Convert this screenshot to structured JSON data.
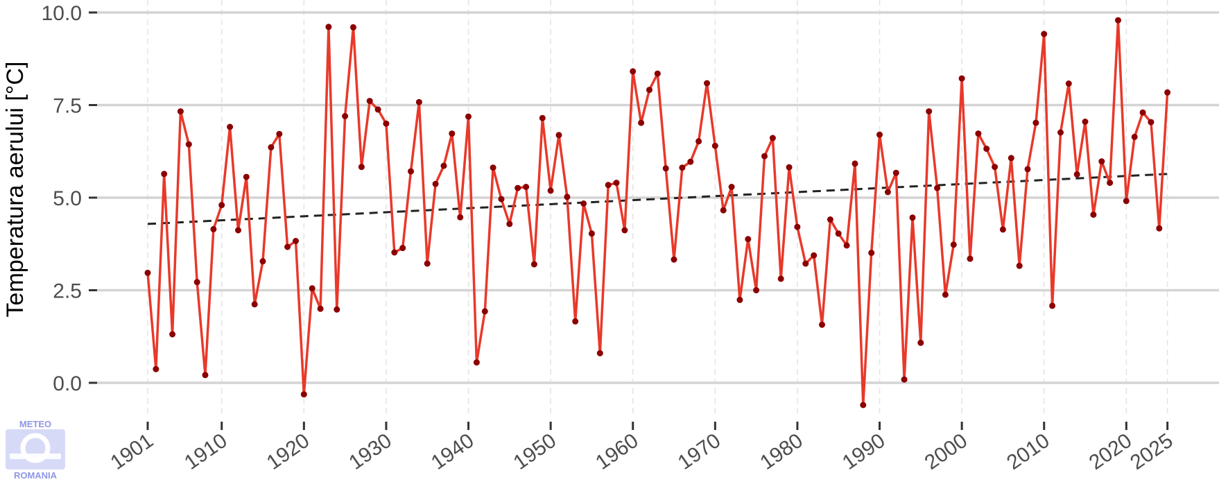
{
  "chart_data": {
    "type": "line",
    "title": "",
    "xlabel": "",
    "ylabel": "Temperatura aerului [°C]",
    "xlim": [
      1899,
      2028
    ],
    "ylim": [
      -0.9,
      10.3
    ],
    "x_ticks": [
      1901,
      1910,
      1920,
      1930,
      1940,
      1950,
      1960,
      1970,
      1980,
      1990,
      2000,
      2010,
      2020,
      2025
    ],
    "y_ticks": [
      {
        "value": 0.0,
        "label": "0.0"
      },
      {
        "value": 2.5,
        "label": "2.5"
      },
      {
        "value": 5.0,
        "label": "5.0"
      },
      {
        "value": 7.5,
        "label": "7.5"
      },
      {
        "value": 10.0,
        "label": "10.0"
      }
    ],
    "grid": true,
    "series": [
      {
        "color": "#e8392a",
        "marker_color": "#8b0000",
        "x_start": 1901,
        "values": [
          2.97,
          0.37,
          5.64,
          1.31,
          7.33,
          6.44,
          2.72,
          0.21,
          4.15,
          4.8,
          6.91,
          4.12,
          5.56,
          2.12,
          3.28,
          6.36,
          6.72,
          3.67,
          3.83,
          -0.31,
          2.55,
          2.0,
          9.61,
          1.98,
          7.2,
          9.6,
          5.83,
          7.61,
          7.38,
          7.0,
          3.52,
          3.64,
          5.71,
          7.58,
          3.22,
          5.37,
          5.86,
          6.73,
          4.47,
          7.19,
          0.55,
          1.93,
          5.81,
          4.96,
          4.29,
          5.26,
          5.29,
          3.2,
          7.15,
          5.19,
          6.69,
          5.02,
          1.66,
          4.84,
          4.03,
          0.8,
          5.34,
          5.4,
          4.12,
          8.41,
          7.02,
          7.91,
          8.35,
          5.79,
          3.33,
          5.81,
          5.97,
          6.52,
          8.09,
          6.4,
          4.66,
          5.29,
          2.24,
          3.88,
          2.5,
          6.12,
          6.61,
          2.81,
          5.82,
          4.21,
          3.22,
          3.44,
          1.57,
          4.41,
          4.03,
          3.71,
          5.92,
          -0.6,
          3.51,
          6.7,
          5.15,
          5.67,
          0.09,
          4.46,
          1.08,
          7.33,
          5.26,
          2.38,
          3.73,
          8.22,
          3.35,
          6.73,
          6.32,
          5.83,
          4.14,
          6.07,
          3.16,
          5.77,
          7.02,
          9.42,
          2.08,
          6.76,
          8.08,
          5.63,
          7.05,
          4.54,
          5.98,
          5.4,
          9.79,
          4.91,
          6.64,
          7.3,
          7.04,
          4.17,
          7.84
        ]
      }
    ],
    "trend": {
      "x": [
        1901,
        2025
      ],
      "y": [
        4.29,
        5.64
      ],
      "color": "#222222",
      "style": "dashed"
    }
  },
  "logo": {
    "top_text": "METEO",
    "bottom_text": "ROMANIA",
    "color": "#8f96e6"
  }
}
